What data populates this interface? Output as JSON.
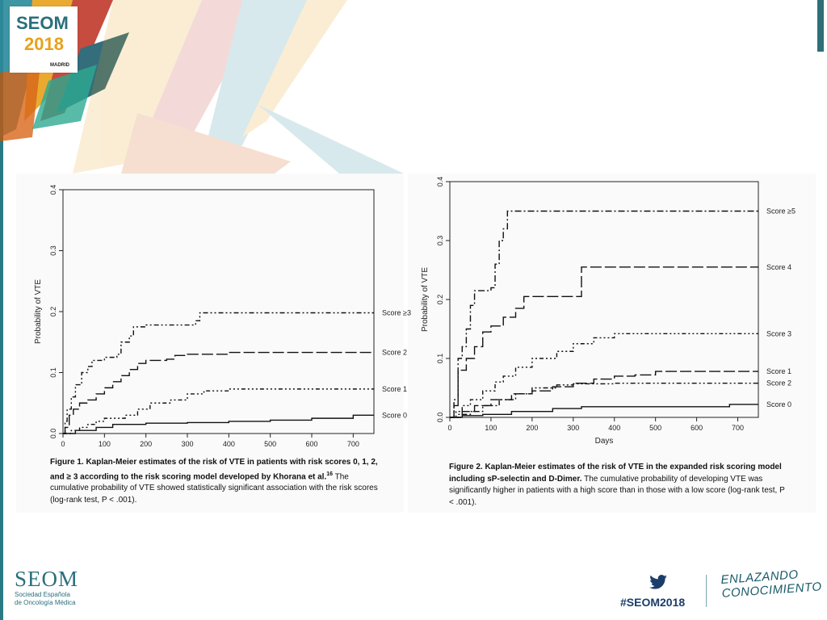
{
  "logo": {
    "top": "SEOM",
    "year": "2018",
    "city": "MADRID"
  },
  "footer": {
    "org": "SEOM",
    "org_sub_1": "Sociedad Española",
    "org_sub_2": "de Oncología Médica",
    "hashtag": "#SEOM2018",
    "tagline_1": "ENLAZANDO",
    "tagline_2": "CONOCIMIENTO"
  },
  "captions": {
    "fig1_bold": "Figure 1. Kaplan-Meier estimates of the risk of VTE in patients with risk scores 0, 1, 2, and ≥ 3 according to the risk scoring model developed by Khorana et al.",
    "fig1_ref": "16",
    "fig1_rest": " The cumulative probability of VTE showed statistically significant association with the risk scores (log-rank test, P < .001).",
    "fig2_bold": "Figure 2. Kaplan-Meier estimates of the risk of VTE in the expanded risk scoring model including sP-selectin and D-Dimer.",
    "fig2_rest": " The cumulative probability of developing VTE was significantly higher in patients with a high score than in those with a low score (log-rank test, P < .001)."
  },
  "chart_data": [
    {
      "type": "line",
      "title": "",
      "xlabel": "",
      "ylabel": "Probability of VTE",
      "xlim": [
        0,
        750
      ],
      "ylim": [
        0,
        0.4
      ],
      "xticks": [
        0,
        100,
        200,
        300,
        400,
        500,
        600,
        700
      ],
      "yticks": [
        0.0,
        0.1,
        0.2,
        0.3,
        0.4
      ],
      "series": [
        {
          "name": "Score ≥3",
          "dash": "dashdot2",
          "x": [
            0,
            5,
            10,
            20,
            30,
            45,
            60,
            70,
            100,
            130,
            140,
            160,
            170,
            200,
            250,
            320,
            330,
            400,
            750
          ],
          "y": [
            0,
            0.02,
            0.04,
            0.06,
            0.08,
            0.1,
            0.11,
            0.12,
            0.125,
            0.13,
            0.15,
            0.16,
            0.175,
            0.178,
            0.178,
            0.185,
            0.198,
            0.198,
            0.198
          ]
        },
        {
          "name": "Score 2",
          "dash": "longdash",
          "x": [
            0,
            5,
            15,
            25,
            40,
            60,
            80,
            100,
            120,
            140,
            160,
            180,
            200,
            250,
            270,
            300,
            400,
            750
          ],
          "y": [
            0,
            0.01,
            0.03,
            0.04,
            0.05,
            0.055,
            0.065,
            0.075,
            0.085,
            0.095,
            0.105,
            0.115,
            0.12,
            0.122,
            0.128,
            0.13,
            0.133,
            0.133
          ]
        },
        {
          "name": "Score 1",
          "dash": "dashdot3",
          "x": [
            0,
            20,
            40,
            60,
            80,
            100,
            150,
            180,
            210,
            260,
            300,
            340,
            400,
            750
          ],
          "y": [
            0,
            0.005,
            0.01,
            0.015,
            0.02,
            0.025,
            0.03,
            0.04,
            0.05,
            0.055,
            0.065,
            0.07,
            0.073,
            0.073
          ]
        },
        {
          "name": "Score 0",
          "dash": "solid",
          "x": [
            0,
            30,
            80,
            120,
            200,
            300,
            400,
            500,
            600,
            700,
            750
          ],
          "y": [
            0,
            0.005,
            0.01,
            0.015,
            0.017,
            0.018,
            0.02,
            0.022,
            0.025,
            0.03,
            0.03
          ]
        }
      ]
    },
    {
      "type": "line",
      "title": "",
      "xlabel": "Days",
      "ylabel": "Probability of VTE",
      "xlim": [
        0,
        750
      ],
      "ylim": [
        0,
        0.4
      ],
      "xticks": [
        0,
        100,
        200,
        300,
        400,
        500,
        600,
        700
      ],
      "yticks": [
        0.0,
        0.1,
        0.2,
        0.3,
        0.4
      ],
      "series": [
        {
          "name": "Score ≥5",
          "dash": "dashdot",
          "x": [
            0,
            10,
            20,
            30,
            40,
            50,
            60,
            100,
            110,
            120,
            130,
            140,
            750
          ],
          "y": [
            0,
            0.03,
            0.1,
            0.12,
            0.15,
            0.19,
            0.215,
            0.22,
            0.26,
            0.3,
            0.32,
            0.35,
            0.35
          ]
        },
        {
          "name": "Score 4",
          "dash": "longdash",
          "x": [
            0,
            10,
            20,
            40,
            60,
            80,
            100,
            130,
            160,
            180,
            240,
            290,
            320,
            750
          ],
          "y": [
            0,
            0.02,
            0.08,
            0.1,
            0.12,
            0.145,
            0.155,
            0.17,
            0.185,
            0.205,
            0.205,
            0.205,
            0.255,
            0.255
          ]
        },
        {
          "name": "Score 3",
          "dash": "dashdot3",
          "x": [
            0,
            15,
            30,
            50,
            80,
            110,
            130,
            160,
            200,
            260,
            300,
            350,
            400,
            750
          ],
          "y": [
            0,
            0.01,
            0.02,
            0.03,
            0.045,
            0.06,
            0.07,
            0.085,
            0.1,
            0.112,
            0.125,
            0.135,
            0.142,
            0.142
          ]
        },
        {
          "name": "Score 1",
          "dash": "longdash",
          "x": [
            0,
            30,
            60,
            100,
            150,
            200,
            250,
            300,
            350,
            400,
            450,
            500,
            750
          ],
          "y": [
            0,
            0.01,
            0.02,
            0.03,
            0.04,
            0.045,
            0.052,
            0.058,
            0.065,
            0.07,
            0.072,
            0.078,
            0.078
          ]
        },
        {
          "name": "Score 2",
          "dash": "dashdot2",
          "x": [
            0,
            20,
            50,
            80,
            120,
            160,
            200,
            260,
            300,
            350,
            400,
            750
          ],
          "y": [
            0,
            0.005,
            0.01,
            0.02,
            0.03,
            0.04,
            0.05,
            0.055,
            0.057,
            0.057,
            0.058,
            0.058
          ]
        },
        {
          "name": "Score 0",
          "dash": "solid",
          "x": [
            0,
            30,
            80,
            150,
            250,
            320,
            400,
            500,
            600,
            680,
            750
          ],
          "y": [
            0,
            0.003,
            0.005,
            0.01,
            0.015,
            0.018,
            0.018,
            0.018,
            0.018,
            0.022,
            0.022
          ]
        }
      ]
    }
  ]
}
